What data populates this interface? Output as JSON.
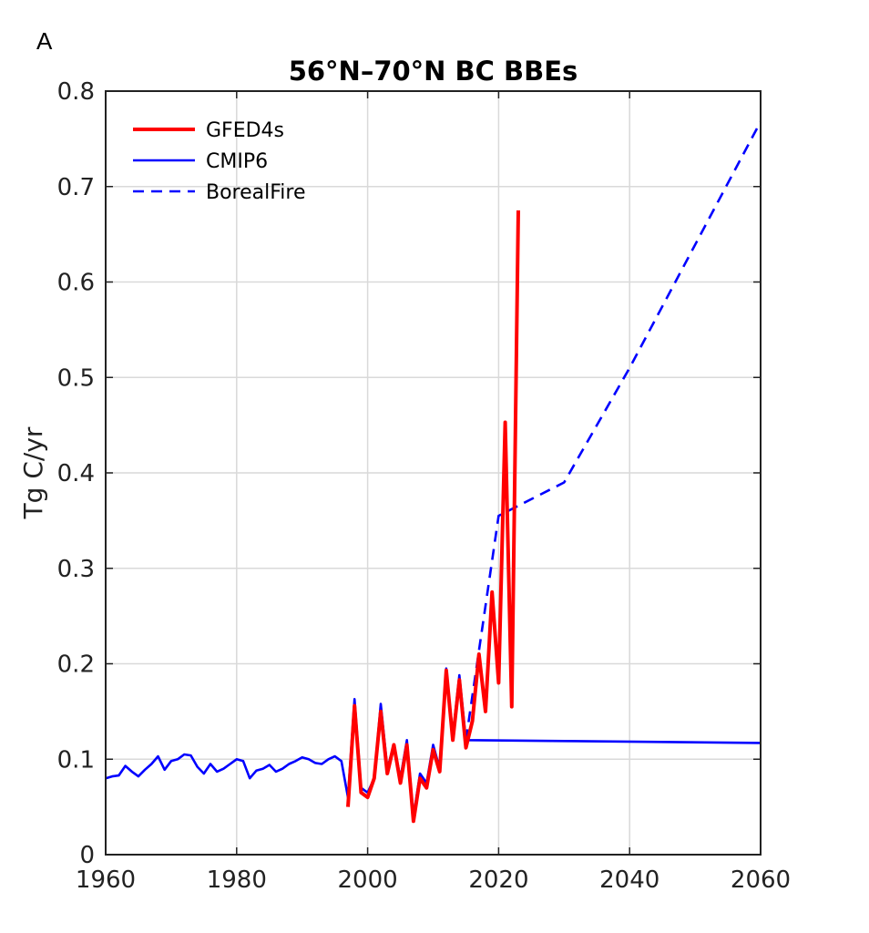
{
  "panel_label": "A",
  "chart_data": {
    "type": "line",
    "title": "56°N–70°N BC BBEs",
    "xlabel": "",
    "ylabel": "Tg C/yr",
    "xlim": [
      1960,
      2060
    ],
    "ylim": [
      0,
      0.8
    ],
    "xticks": [
      "1960",
      "1980",
      "2000",
      "2020",
      "2040",
      "2060"
    ],
    "yticks": [
      "0",
      "0.1",
      "0.2",
      "0.3",
      "0.4",
      "0.5",
      "0.6",
      "0.7",
      "0.8"
    ],
    "grid": true,
    "legend_position": "top-left",
    "series": [
      {
        "name": "GFED4s",
        "color": "#ff0000",
        "style": "solid",
        "x": [
          1997,
          1998,
          1999,
          2000,
          2001,
          2002,
          2003,
          2004,
          2005,
          2006,
          2007,
          2008,
          2009,
          2010,
          2011,
          2012,
          2013,
          2014,
          2015,
          2016,
          2017,
          2018,
          2019,
          2020,
          2021,
          2022,
          2023
        ],
        "y": [
          0.05,
          0.156,
          0.065,
          0.06,
          0.08,
          0.15,
          0.085,
          0.115,
          0.075,
          0.115,
          0.035,
          0.08,
          0.07,
          0.11,
          0.087,
          0.193,
          0.12,
          0.183,
          0.112,
          0.14,
          0.21,
          0.15,
          0.275,
          0.18,
          0.453,
          0.155,
          0.675
        ]
      },
      {
        "name": "CMIP6",
        "color": "#0000ff",
        "style": "solid",
        "x": [
          1960,
          1961,
          1962,
          1963,
          1964,
          1965,
          1966,
          1967,
          1968,
          1969,
          1970,
          1971,
          1972,
          1973,
          1974,
          1975,
          1976,
          1977,
          1978,
          1979,
          1980,
          1981,
          1982,
          1983,
          1984,
          1985,
          1986,
          1987,
          1988,
          1989,
          1990,
          1991,
          1992,
          1993,
          1994,
          1995,
          1996,
          1997,
          1998,
          1999,
          2000,
          2001,
          2002,
          2003,
          2004,
          2005,
          2006,
          2007,
          2008,
          2009,
          2010,
          2011,
          2012,
          2013,
          2014,
          2015,
          2030,
          2060
        ],
        "y": [
          0.08,
          0.082,
          0.083,
          0.093,
          0.087,
          0.082,
          0.089,
          0.095,
          0.103,
          0.089,
          0.098,
          0.1,
          0.105,
          0.104,
          0.092,
          0.085,
          0.095,
          0.087,
          0.09,
          0.095,
          0.1,
          0.098,
          0.08,
          0.088,
          0.09,
          0.094,
          0.087,
          0.09,
          0.095,
          0.098,
          0.102,
          0.1,
          0.096,
          0.095,
          0.1,
          0.103,
          0.098,
          0.06,
          0.163,
          0.07,
          0.065,
          0.08,
          0.158,
          0.09,
          0.115,
          0.08,
          0.12,
          0.04,
          0.085,
          0.075,
          0.115,
          0.09,
          0.195,
          0.125,
          0.188,
          0.12,
          0.119,
          0.117
        ]
      },
      {
        "name": "BorealFire",
        "color": "#0000ff",
        "style": "dashed",
        "x": [
          2015,
          2020,
          2030,
          2040,
          2060
        ],
        "y": [
          0.12,
          0.355,
          0.39,
          0.51,
          0.768
        ]
      }
    ]
  }
}
